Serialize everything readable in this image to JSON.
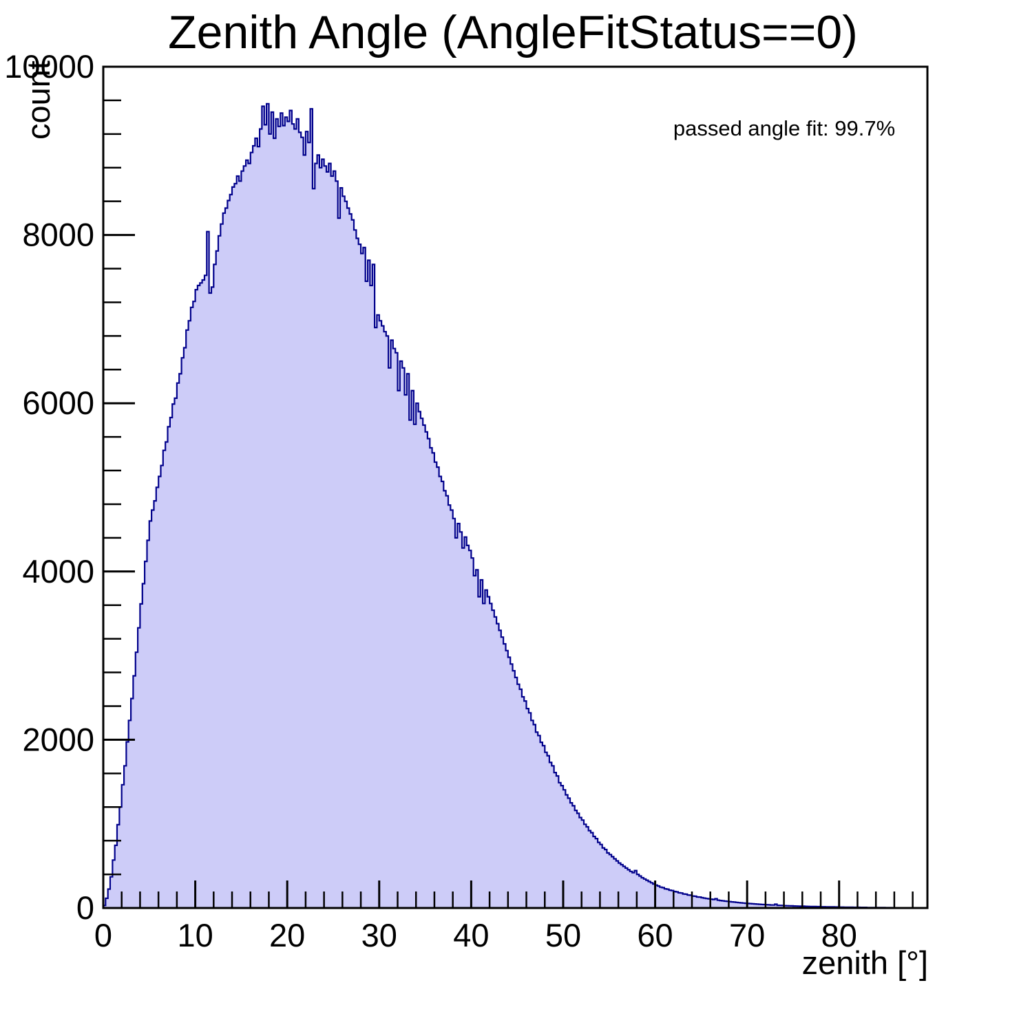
{
  "title": "Zenith Angle (AngleFitStatus==0)",
  "colors": {
    "background": "#ffffff",
    "hist_fill": "#cdccf8",
    "hist_line": "#00008b",
    "axis": "#000000",
    "text": "#000000"
  },
  "chart_data": {
    "type": "bar",
    "title": "Zenith Angle (AngleFitStatus==0)",
    "xlabel": "zenith [°]",
    "ylabel": "count",
    "annotation": "passed angle fit: 99.7%",
    "legend": "none",
    "grid": false,
    "xlim": [
      0,
      89.6
    ],
    "ylim": [
      0,
      10000
    ],
    "x_major_ticks": [
      0,
      10,
      20,
      30,
      40,
      50,
      60,
      70,
      80
    ],
    "x_minor_step": 2,
    "y_major_ticks": [
      0,
      2000,
      4000,
      6000,
      8000,
      10000
    ],
    "y_minor_step": 400,
    "bin_start": 0,
    "bin_width": 0.25,
    "counts": [
      30,
      115,
      225,
      370,
      570,
      745,
      990,
      1200,
      1465,
      1690,
      1975,
      2230,
      2490,
      2760,
      3040,
      3330,
      3615,
      3855,
      4120,
      4370,
      4600,
      4730,
      4840,
      5000,
      5130,
      5260,
      5440,
      5540,
      5720,
      5830,
      5990,
      6060,
      6240,
      6350,
      6540,
      6660,
      6870,
      6980,
      7140,
      7210,
      7350,
      7400,
      7430,
      7465,
      7520,
      8040,
      7310,
      7380,
      7650,
      7810,
      7990,
      8130,
      8260,
      8320,
      8410,
      8480,
      8570,
      8610,
      8700,
      8640,
      8760,
      8820,
      8890,
      8850,
      8980,
      9060,
      9150,
      9050,
      9260,
      9530,
      9310,
      9560,
      9200,
      9460,
      9150,
      9380,
      9290,
      9450,
      9300,
      9400,
      9350,
      9480,
      9320,
      9260,
      9380,
      9220,
      9160,
      8950,
      9230,
      9100,
      9500,
      8550,
      8850,
      8950,
      8800,
      8900,
      8820,
      8750,
      8850,
      8700,
      8760,
      8640,
      8200,
      8560,
      8460,
      8400,
      8320,
      8250,
      8180,
      8060,
      7960,
      7890,
      7780,
      7850,
      7450,
      7700,
      7400,
      7650,
      6900,
      7050,
      6980,
      6920,
      6850,
      6800,
      6420,
      6750,
      6650,
      6600,
      6150,
      6500,
      6420,
      6100,
      6350,
      5800,
      6150,
      5750,
      6000,
      5900,
      5820,
      5740,
      5660,
      5580,
      5470,
      5410,
      5300,
      5240,
      5130,
      5070,
      4960,
      4900,
      4790,
      4730,
      4630,
      4400,
      4570,
      4470,
      4280,
      4410,
      4310,
      4250,
      4160,
      3950,
      4020,
      3700,
      3900,
      3620,
      3780,
      3700,
      3620,
      3540,
      3460,
      3380,
      3300,
      3220,
      3140,
      3060,
      2980,
      2900,
      2820,
      2740,
      2660,
      2600,
      2510,
      2460,
      2370,
      2320,
      2230,
      2180,
      2090,
      2050,
      1970,
      1930,
      1850,
      1810,
      1730,
      1690,
      1610,
      1570,
      1490,
      1455,
      1405,
      1345,
      1305,
      1250,
      1215,
      1160,
      1125,
      1075,
      1045,
      995,
      965,
      920,
      895,
      850,
      825,
      780,
      755,
      715,
      695,
      655,
      635,
      610,
      585,
      560,
      535,
      515,
      495,
      475,
      455,
      435,
      420,
      445,
      400,
      380,
      360,
      345,
      330,
      315,
      300,
      285,
      272,
      262,
      248,
      242,
      228,
      224,
      212,
      208,
      196,
      192,
      181,
      178,
      167,
      164,
      154,
      152,
      142,
      140,
      131,
      130,
      123,
      118,
      113,
      109,
      105,
      101,
      110,
      93,
      89,
      86,
      82,
      79,
      76,
      73,
      70,
      67,
      64,
      61,
      59,
      56,
      54,
      52,
      50,
      48,
      46,
      44,
      42,
      41,
      39,
      38,
      36,
      35,
      45,
      32,
      31,
      30,
      28,
      27,
      26,
      25,
      24,
      23,
      22,
      21,
      21,
      20,
      19,
      18,
      18,
      17,
      16,
      16,
      15,
      15,
      14,
      14,
      13,
      13,
      12,
      12,
      11,
      11,
      10,
      10,
      9,
      9,
      8,
      8,
      8,
      7,
      7,
      7,
      6,
      6,
      6,
      6,
      5,
      5,
      5,
      5,
      4,
      4,
      4,
      3,
      3,
      3,
      3,
      2,
      2,
      2,
      2,
      2,
      1,
      1,
      1,
      0,
      0,
      0
    ]
  }
}
